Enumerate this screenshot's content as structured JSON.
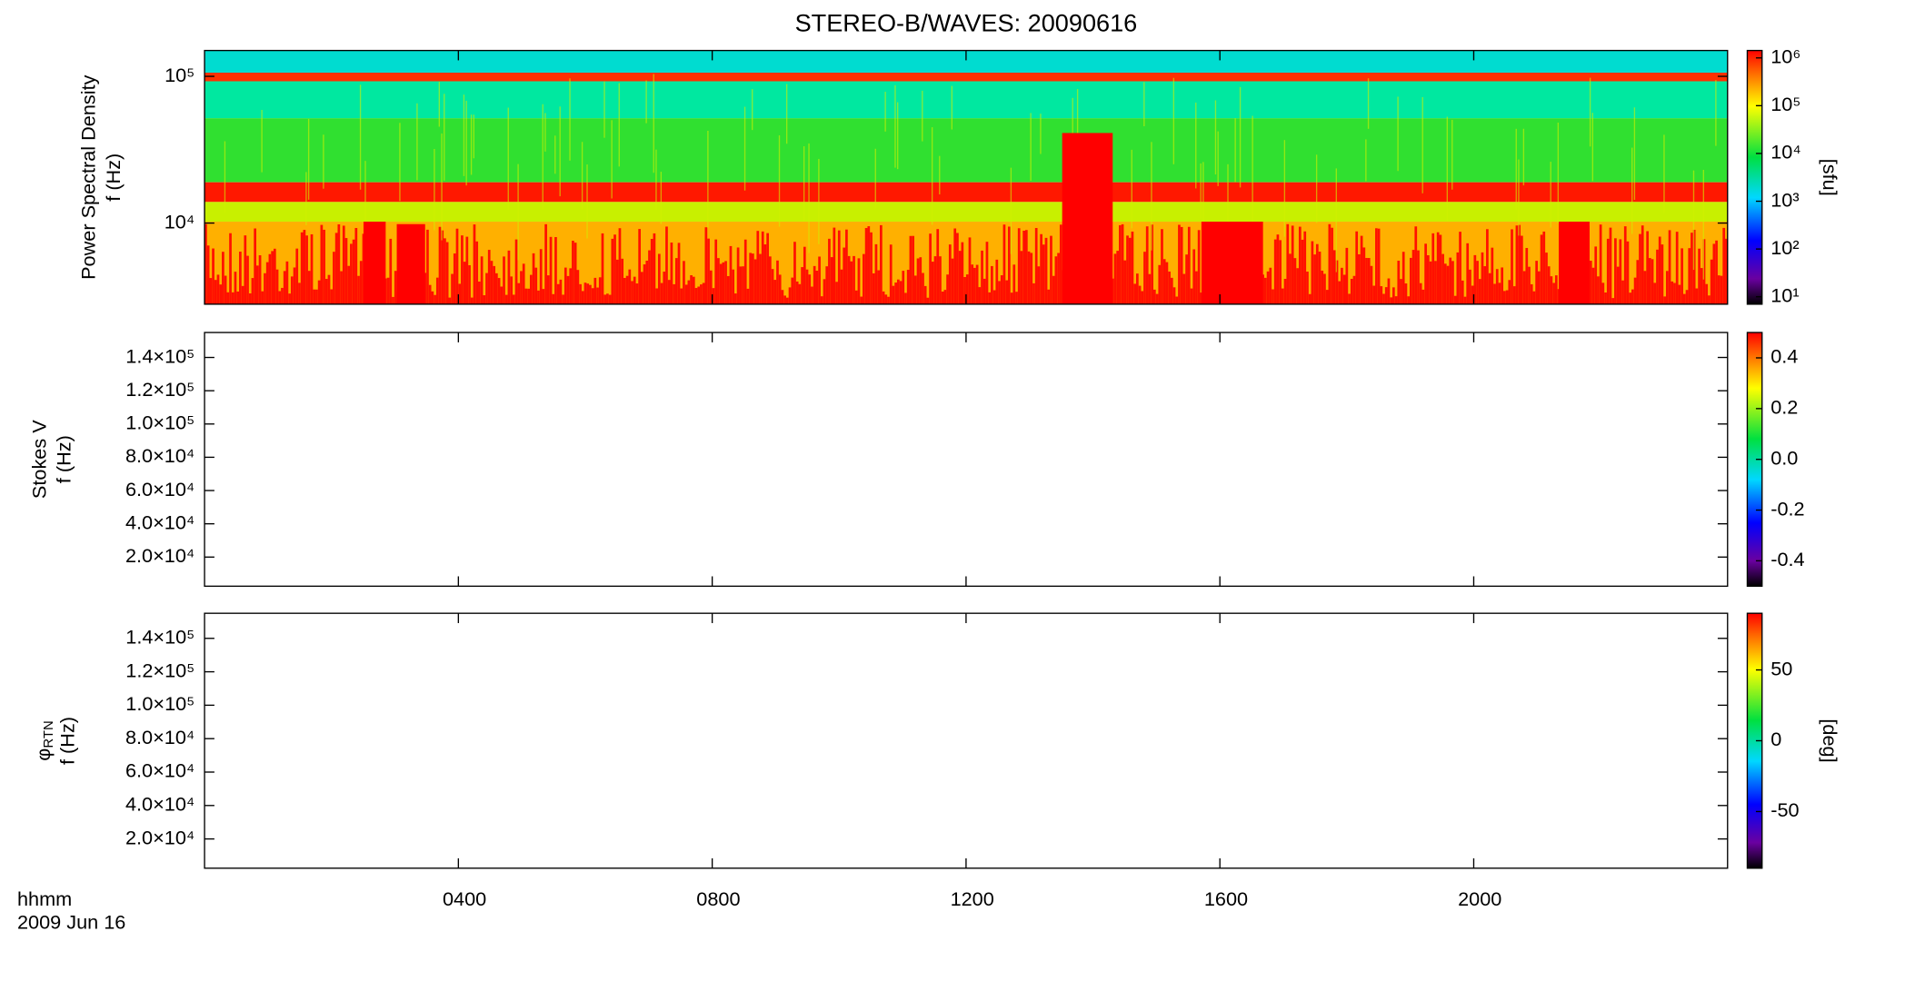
{
  "title": "STEREO-B/WAVES: 20090616",
  "x_axis": {
    "xlim": [
      0,
      24
    ],
    "xticks": [
      {
        "value": 4,
        "label": "0400"
      },
      {
        "value": 8,
        "label": "0800"
      },
      {
        "value": 12,
        "label": "1200"
      },
      {
        "value": 16,
        "label": "1600"
      },
      {
        "value": 20,
        "label": "2000"
      }
    ],
    "label": "hhmm",
    "date": "2009 Jun 16"
  },
  "chart_data": [
    {
      "type": "heatmap",
      "ylabel": [
        "Power Spectral Density",
        "f (Hz)"
      ],
      "ylog": true,
      "ylim": [
        2800,
        150000
      ],
      "yticks": [
        {
          "value": 10000,
          "label": "10⁴"
        },
        {
          "value": 100000,
          "label": "10⁵"
        }
      ],
      "colorbar": {
        "log": true,
        "lim": [
          7,
          1430000
        ],
        "ticks": [
          {
            "value": 10,
            "label": "10¹"
          },
          {
            "value": 100,
            "label": "10²"
          },
          {
            "value": 1000,
            "label": "10³"
          },
          {
            "value": 10000,
            "label": "10⁴"
          },
          {
            "value": 100000,
            "label": "10⁵"
          },
          {
            "value": 1000000,
            "label": "10⁶"
          }
        ],
        "label": "[sfu]"
      }
    },
    {
      "type": "heatmap",
      "ylabel": [
        "Stokes V",
        "f (Hz)"
      ],
      "ylog": false,
      "ylim": [
        2500,
        155000
      ],
      "yticks": [
        {
          "value": 20000,
          "label": "2.0×10⁴"
        },
        {
          "value": 40000,
          "label": "4.0×10⁴"
        },
        {
          "value": 60000,
          "label": "6.0×10⁴"
        },
        {
          "value": 80000,
          "label": "8.0×10⁴"
        },
        {
          "value": 100000,
          "label": "1.0×10⁵"
        },
        {
          "value": 120000,
          "label": "1.2×10⁵"
        },
        {
          "value": 140000,
          "label": "1.4×10⁵"
        }
      ],
      "colorbar": {
        "log": false,
        "lim": [
          -0.5,
          0.5
        ],
        "ticks": [
          -0.4,
          -0.2,
          {
            "value": 0,
            "label": "0.0"
          },
          0.2,
          0.4
        ]
      }
    },
    {
      "type": "heatmap",
      "ylabel": [
        "φ",
        "RTN",
        "f (Hz)"
      ],
      "ylog": false,
      "ylim": [
        2500,
        155000
      ],
      "yticks": [
        {
          "value": 20000,
          "label": "2.0×10⁴"
        },
        {
          "value": 40000,
          "label": "4.0×10⁴"
        },
        {
          "value": 60000,
          "label": "6.0×10⁴"
        },
        {
          "value": 80000,
          "label": "8.0×10⁴"
        },
        {
          "value": 100000,
          "label": "1.0×10⁵"
        },
        {
          "value": 120000,
          "label": "1.2×10⁵"
        },
        {
          "value": 140000,
          "label": "1.4×10⁵"
        }
      ],
      "colorbar": {
        "log": false,
        "lim": [
          -90,
          90
        ],
        "ticks": [
          -50,
          0,
          50
        ],
        "label": "[deg]"
      }
    }
  ]
}
